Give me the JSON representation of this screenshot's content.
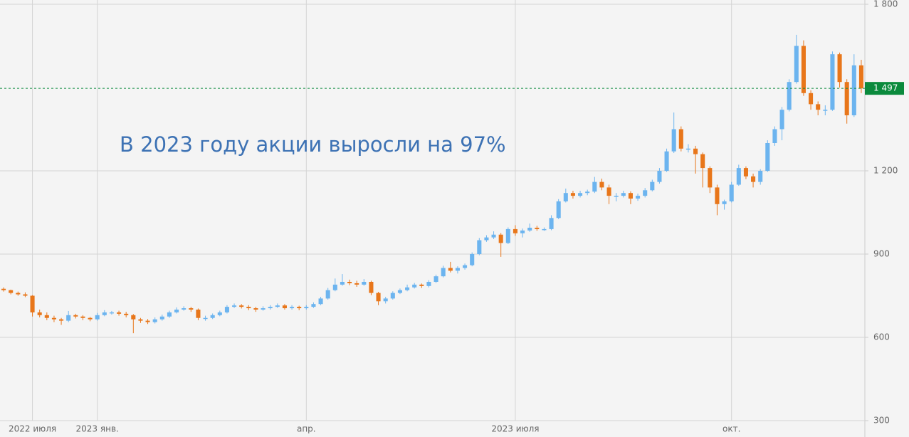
{
  "chart_data": {
    "type": "candlestick",
    "annotation": "В 2023 году акции выросли на 97%",
    "up_color": "#6cb4ef",
    "down_color": "#e8761a",
    "open": [
      775,
      770,
      760,
      755,
      750,
      690,
      680,
      670,
      665,
      660,
      680,
      675,
      670,
      665,
      680,
      690,
      690,
      685,
      680,
      665,
      660,
      655,
      665,
      675,
      690,
      700,
      705,
      700,
      670,
      670,
      680,
      690,
      710,
      715,
      710,
      705,
      700,
      705,
      710,
      715,
      705,
      710,
      705,
      710,
      720,
      740,
      770,
      790,
      800,
      795,
      790,
      800,
      760,
      730,
      740,
      760,
      770,
      780,
      790,
      785,
      800,
      820,
      850,
      840,
      850,
      860,
      900,
      950,
      960,
      970,
      940,
      990,
      975,
      985,
      995,
      990,
      990,
      1030,
      1090,
      1120,
      1110,
      1120,
      1125,
      1160,
      1140,
      1110,
      1110,
      1120,
      1100,
      1110,
      1130,
      1160,
      1200,
      1270,
      1350,
      1280,
      1280,
      1260,
      1210,
      1140,
      1080,
      1090,
      1150,
      1210,
      1180,
      1160,
      1200,
      1300,
      1350,
      1420,
      1520,
      1650,
      1480,
      1440,
      1420,
      1420,
      1620,
      1520,
      1400,
      1580
    ],
    "high": [
      780,
      772,
      765,
      762,
      752,
      700,
      690,
      678,
      670,
      695,
      685,
      680,
      674,
      688,
      698,
      695,
      696,
      692,
      684,
      670,
      666,
      672,
      682,
      696,
      708,
      712,
      710,
      704,
      678,
      686,
      696,
      716,
      722,
      720,
      716,
      710,
      712,
      716,
      722,
      720,
      716,
      714,
      716,
      726,
      746,
      778,
      812,
      828,
      808,
      804,
      810,
      804,
      764,
      746,
      766,
      776,
      790,
      796,
      794,
      806,
      826,
      858,
      872,
      856,
      866,
      906,
      958,
      968,
      982,
      976,
      996,
      1004,
      992,
      1010,
      1002,
      996,
      1040,
      1098,
      1136,
      1128,
      1128,
      1132,
      1178,
      1172,
      1150,
      1120,
      1128,
      1126,
      1118,
      1138,
      1168,
      1210,
      1280,
      1410,
      1360,
      1296,
      1290,
      1266,
      1216,
      1150,
      1096,
      1160,
      1222,
      1216,
      1190,
      1206,
      1310,
      1360,
      1430,
      1530,
      1690,
      1670,
      1490,
      1450,
      1436,
      1630,
      1626,
      1530,
      1620,
      1600
    ],
    "low": [
      765,
      755,
      750,
      745,
      675,
      672,
      662,
      655,
      645,
      655,
      668,
      662,
      658,
      660,
      676,
      682,
      678,
      672,
      615,
      652,
      648,
      650,
      660,
      670,
      686,
      696,
      692,
      662,
      660,
      666,
      676,
      686,
      706,
      704,
      698,
      692,
      696,
      700,
      706,
      700,
      700,
      698,
      700,
      706,
      716,
      736,
      766,
      786,
      788,
      782,
      786,
      752,
      716,
      722,
      736,
      756,
      766,
      776,
      778,
      780,
      796,
      816,
      834,
      830,
      844,
      856,
      896,
      944,
      954,
      890,
      936,
      966,
      960,
      980,
      984,
      984,
      986,
      1026,
      1086,
      1100,
      1104,
      1112,
      1120,
      1130,
      1080,
      1090,
      1104,
      1080,
      1092,
      1104,
      1126,
      1154,
      1196,
      1264,
      1270,
      1266,
      1190,
      1140,
      1120,
      1040,
      1060,
      1086,
      1146,
      1170,
      1140,
      1150,
      1196,
      1290,
      1310,
      1414,
      1514,
      1470,
      1420,
      1400,
      1400,
      1416,
      1500,
      1370,
      1394,
      1480
    ],
    "close": [
      770,
      760,
      755,
      750,
      690,
      680,
      670,
      665,
      660,
      680,
      675,
      670,
      665,
      680,
      690,
      690,
      685,
      680,
      665,
      660,
      655,
      665,
      675,
      690,
      700,
      705,
      700,
      670,
      670,
      680,
      690,
      710,
      715,
      710,
      705,
      700,
      705,
      710,
      715,
      705,
      710,
      705,
      710,
      720,
      740,
      770,
      790,
      800,
      795,
      790,
      800,
      760,
      730,
      740,
      760,
      770,
      780,
      790,
      785,
      800,
      820,
      850,
      840,
      850,
      860,
      900,
      950,
      960,
      970,
      940,
      990,
      975,
      985,
      995,
      990,
      990,
      1030,
      1090,
      1120,
      1110,
      1120,
      1125,
      1160,
      1140,
      1110,
      1110,
      1120,
      1100,
      1110,
      1130,
      1160,
      1200,
      1270,
      1350,
      1280,
      1280,
      1260,
      1210,
      1140,
      1080,
      1090,
      1150,
      1210,
      1180,
      1160,
      1200,
      1300,
      1350,
      1420,
      1520,
      1650,
      1480,
      1440,
      1420,
      1420,
      1620,
      1520,
      1400,
      1580,
      1497
    ],
    "xlim": [
      -0.5,
      119.5
    ],
    "xticks": [
      {
        "value": 4,
        "label": "2022 июля"
      },
      {
        "value": 13,
        "label": "2023 янв."
      },
      {
        "value": 42,
        "label": "апр."
      },
      {
        "value": 71,
        "label": "2023 июля"
      },
      {
        "value": 101,
        "label": "окт."
      }
    ],
    "ylim": [
      300,
      1800
    ],
    "yticks": [
      {
        "value": 1800,
        "label": "1 800"
      },
      {
        "value": 1200,
        "label": "1 200"
      },
      900,
      600,
      300
    ],
    "last_price": {
      "value": 1497,
      "label": "1 497"
    },
    "last_price_color": "#0a8a3c",
    "grid": true
  }
}
